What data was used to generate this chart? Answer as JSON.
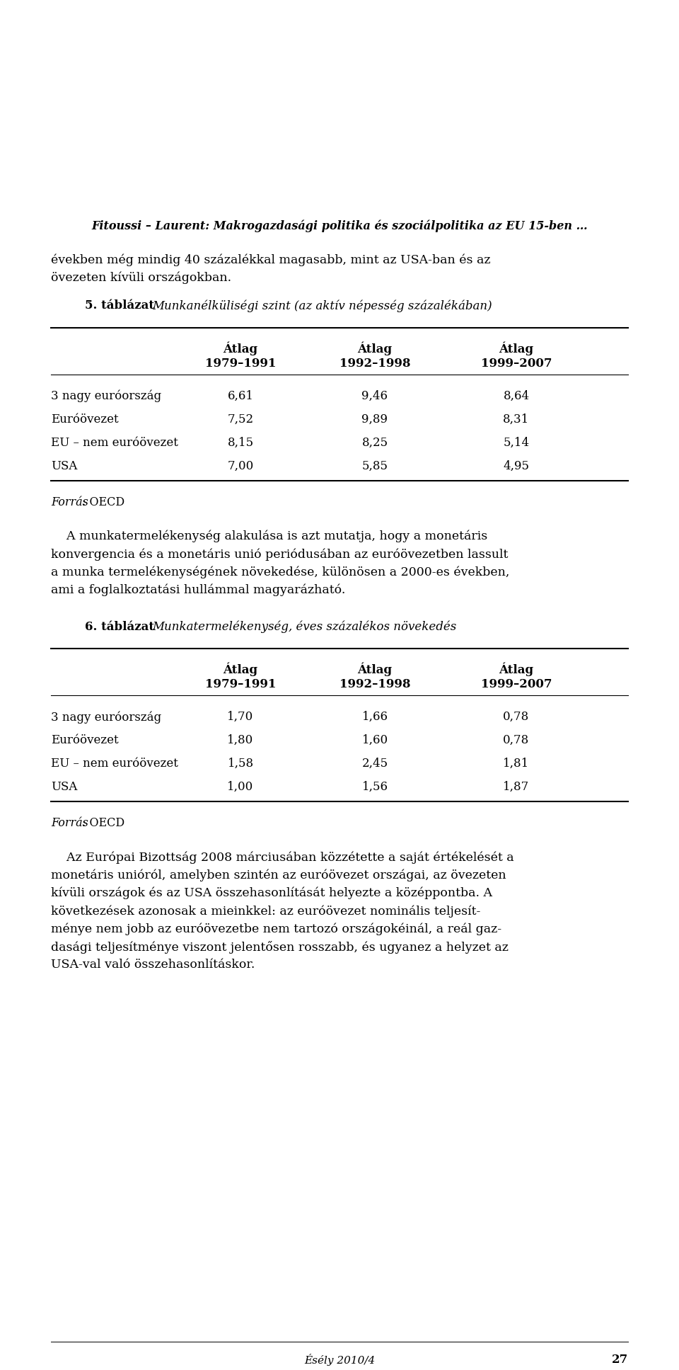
{
  "bg_color": "#ffffff",
  "page_width": 9.6,
  "page_height": 19.35,
  "header_italic": "Fitoussi – Laurent: Makrogazdasági politika és szociálpolitika az EU 15-ben …",
  "para1_line1": "években még mindig 40 százalékkal magasabb, mint az USA-ban és az",
  "para1_line2": "övezeten kívüli országokban.",
  "table5_label": "5. táblázat",
  "table5_title_italic": "Munkanélküliségi szint (az aktív népesség százalékában)",
  "col_header1": "Átlag",
  "col_header2": "1979–1991",
  "col_header3": "1992–1998",
  "col_header4": "1999–2007",
  "table5_rows": [
    [
      "3 nagy euróország",
      "6,61",
      "9,46",
      "8,64"
    ],
    [
      "Euróövezet",
      "7,52",
      "9,89",
      "8,31"
    ],
    [
      "EU – nem euróövezet",
      "8,15",
      "8,25",
      "5,14"
    ],
    [
      "USA",
      "7,00",
      "5,85",
      "4,95"
    ]
  ],
  "forras_italic": "Forrás",
  "forras_normal": ": OECD",
  "para2_lines": [
    "    A munkatermelékenység alakulása is azt mutatja, hogy a monetáris",
    "konvergencia és a monetáris unió periódusában az euróövezetben lassult",
    "a munka termelékenységének növekedése, különösen a 2000-es években,",
    "ami a foglalkoztatási hullámmal magyarázható."
  ],
  "table6_label": "6. táblázat",
  "table6_title_italic": "Munkatermelékenység, éves százalékos növekedés",
  "table6_rows": [
    [
      "3 nagy euróország",
      "1,70",
      "1,66",
      "0,78"
    ],
    [
      "Euróövezet",
      "1,80",
      "1,60",
      "0,78"
    ],
    [
      "EU – nem euróövezet",
      "1,58",
      "2,45",
      "1,81"
    ],
    [
      "USA",
      "1,00",
      "1,56",
      "1,87"
    ]
  ],
  "para3_lines": [
    "    Az Európai Bizottság 2008 márciusában közzétette a saját értékelését a",
    "monetáris unióról, amelyben szintén az euróövezet országai, az övezeten",
    "kívüli országok és az USA összehasonlítását helyezte a középpontba. A",
    "következések azonosak a mieinkkel: az euróövezet nominális teljesít-",
    "ménye nem jobb az euróövezetbe nem tartozó országokéinál, a reál gaz-",
    "dasági teljesítménye viszont jelentősen rosszabb, és ugyanez a helyzet az",
    "USA-val való összehasonlításkor."
  ],
  "footer_text": "Ésély 2010/4",
  "footer_page": "27",
  "fs_header": 11.5,
  "fs_body": 12.5,
  "fs_table_title": 12.0,
  "fs_table": 12.0,
  "fs_forras": 11.5,
  "fs_footer": 11.0
}
